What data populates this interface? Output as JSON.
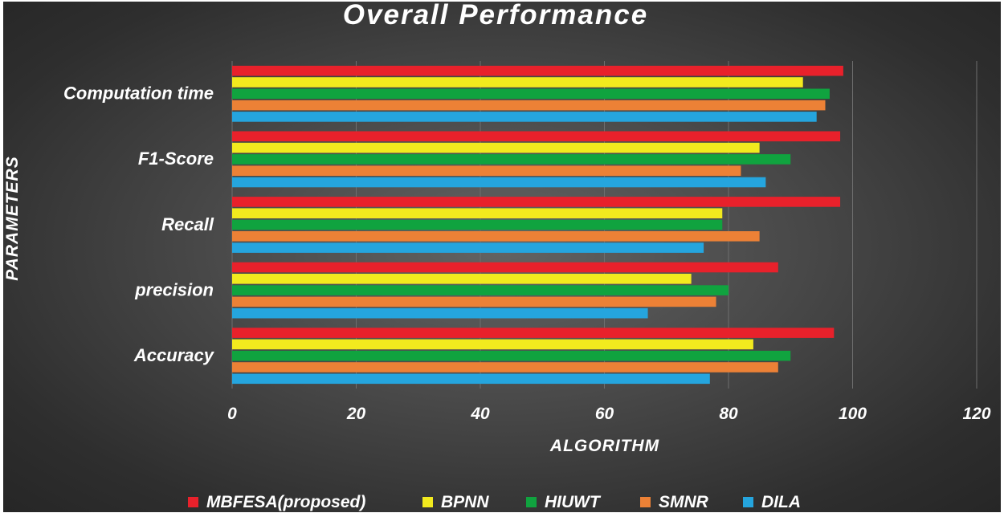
{
  "chart_data": {
    "type": "bar",
    "orientation": "horizontal",
    "title": "Overall Performance",
    "xlabel": "ALGORITHM",
    "ylabel": "PARAMETERS",
    "xlim": [
      0,
      120
    ],
    "xticks": [
      "0",
      "20",
      "40",
      "60",
      "80",
      "100",
      "120"
    ],
    "grid": true,
    "legend_position": "bottom",
    "categories": [
      "Computation time",
      "F1-Score",
      "Recall",
      "precision",
      "Accuracy"
    ],
    "series": [
      {
        "name": "MBFESA(proposed)",
        "color": "#e8212b",
        "values": [
          98.5,
          98,
          98,
          88,
          97
        ]
      },
      {
        "name": "BPNN",
        "color": "#f2ea1e",
        "values": [
          92,
          85,
          79,
          74,
          84
        ]
      },
      {
        "name": "HIUWT",
        "color": "#10a33f",
        "values": [
          96.3,
          90,
          79,
          80,
          90
        ]
      },
      {
        "name": "SMNR",
        "color": "#ec8136",
        "values": [
          95.6,
          82,
          85,
          78,
          88
        ]
      },
      {
        "name": "DILA",
        "color": "#25a5de",
        "values": [
          94.2,
          86,
          76,
          67,
          77
        ]
      }
    ]
  }
}
